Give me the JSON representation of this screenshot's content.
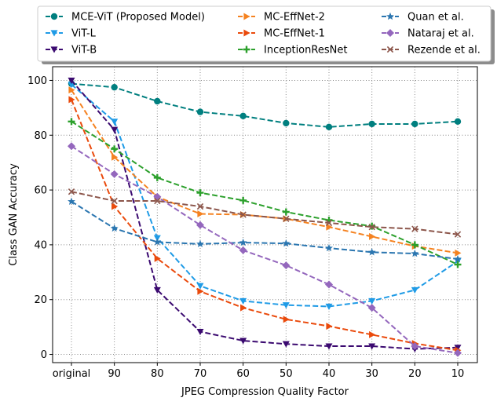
{
  "chart_data": {
    "type": "line",
    "title": "",
    "xlabel": "JPEG Compression Quality Factor",
    "ylabel": "Class GAN Accuracy",
    "categories": [
      "original",
      "90",
      "80",
      "70",
      "60",
      "50",
      "40",
      "30",
      "20",
      "10"
    ],
    "yticks": [
      0,
      20,
      40,
      60,
      80,
      100
    ],
    "ylim": [
      -3,
      105
    ],
    "grid": true,
    "legend_position": "top-center",
    "series": [
      {
        "name": "MCE-ViT (Proposed Model)",
        "color": "#007f7f",
        "marker": "circle",
        "values": [
          98.8,
          97.5,
          92.4,
          88.5,
          87.0,
          84.4,
          83.0,
          84.1,
          84.1,
          85.0
        ]
      },
      {
        "name": "ViT-L",
        "color": "#1f9be6",
        "marker": "triangle-down",
        "values": [
          98.5,
          85.0,
          42.5,
          25.0,
          19.5,
          18.0,
          17.5,
          19.5,
          23.5,
          34.0
        ]
      },
      {
        "name": "ViT-B",
        "color": "#3b0a70",
        "marker": "triangle-down",
        "values": [
          100.0,
          82.0,
          23.5,
          8.3,
          5.0,
          3.8,
          3.0,
          3.0,
          2.0,
          2.5
        ]
      },
      {
        "name": "MC-EffNet-2",
        "color": "#f58220",
        "marker": "triangle-right",
        "values": [
          96.5,
          72.0,
          57.5,
          51.3,
          51.0,
          49.5,
          46.5,
          43.0,
          39.5,
          37.0
        ]
      },
      {
        "name": "MC-EffNet-1",
        "color": "#ea4a0c",
        "marker": "triangle-right",
        "values": [
          93.0,
          54.0,
          35.0,
          23.0,
          17.0,
          12.8,
          10.3,
          7.2,
          4.0,
          1.5
        ]
      },
      {
        "name": "InceptionResNet",
        "color": "#2ca02c",
        "marker": "plus",
        "values": [
          85.0,
          75.0,
          64.5,
          59.0,
          56.2,
          52.0,
          49.0,
          46.8,
          40.0,
          32.8
        ]
      },
      {
        "name": "Quan et al.",
        "color": "#2b76b0",
        "marker": "star",
        "values": [
          55.8,
          46.0,
          41.0,
          40.3,
          40.8,
          40.5,
          38.8,
          37.3,
          36.8,
          34.8
        ]
      },
      {
        "name": "Nataraj et al.",
        "color": "#9467bd",
        "marker": "diamond",
        "values": [
          76.0,
          65.8,
          57.5,
          47.2,
          38.0,
          32.5,
          25.5,
          17.0,
          3.0,
          0.5
        ]
      },
      {
        "name": "Rezende et al.",
        "color": "#8c564b",
        "marker": "x",
        "values": [
          59.4,
          56.0,
          56.0,
          54.0,
          51.0,
          49.5,
          48.0,
          46.5,
          45.8,
          43.8
        ]
      }
    ]
  }
}
